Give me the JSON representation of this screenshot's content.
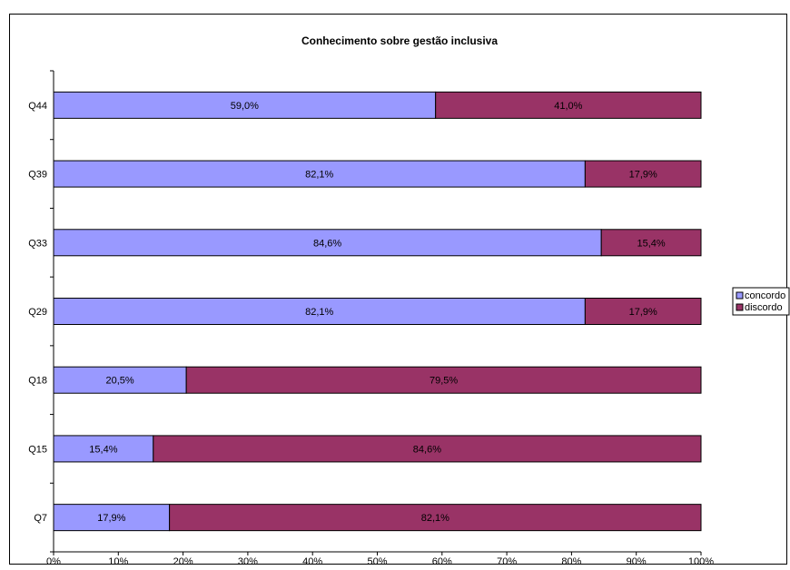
{
  "chart_data": {
    "type": "bar",
    "orientation": "horizontal",
    "stacked": "percent",
    "title": "Conhecimento sobre gestão inclusiva",
    "categories": [
      "Q44",
      "Q39",
      "Q33",
      "Q29",
      "Q18",
      "Q15",
      "Q7"
    ],
    "series": [
      {
        "name": "concordo",
        "color": "#9999ff",
        "values": [
          59.0,
          82.1,
          84.6,
          82.1,
          20.5,
          15.4,
          17.9
        ],
        "labels": [
          "59,0%",
          "82,1%",
          "84,6%",
          "82,1%",
          "20,5%",
          "15,4%",
          "17,9%"
        ]
      },
      {
        "name": "discordo",
        "color": "#993366",
        "values": [
          41.0,
          17.9,
          15.4,
          17.9,
          79.5,
          84.6,
          82.1
        ],
        "labels": [
          "41,0%",
          "17,9%",
          "15,4%",
          "17,9%",
          "79,5%",
          "84,6%",
          "82,1%"
        ]
      }
    ],
    "xlim": [
      0,
      100
    ],
    "x_ticks": [
      "0%",
      "10%",
      "20%",
      "30%",
      "40%",
      "50%",
      "60%",
      "70%",
      "80%",
      "90%",
      "100%"
    ],
    "legend_position": "right",
    "grid": false
  }
}
